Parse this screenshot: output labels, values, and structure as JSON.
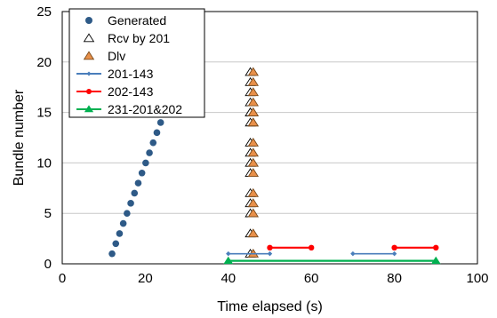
{
  "chart_data": {
    "type": "scatter",
    "title": "",
    "xlabel": "Time elapsed (s)",
    "ylabel": "Bundle number",
    "xlim": [
      0,
      100
    ],
    "ylim": [
      0,
      25
    ],
    "x_ticks": [
      0,
      20,
      40,
      60,
      80,
      100
    ],
    "y_ticks": [
      0,
      5,
      10,
      15,
      20,
      25
    ],
    "grid": "horizontal",
    "legend_position": "top-left",
    "series": [
      {
        "name": "Generated",
        "kind": "points",
        "marker": "circle",
        "color": "#2e5a87",
        "x": [
          12,
          12.9,
          13.8,
          14.7,
          15.6,
          16.5,
          17.4,
          18.3,
          19.2,
          20.1,
          21,
          21.9,
          22.8,
          23.7,
          24.6,
          25.5,
          26.4,
          27.3,
          28.2,
          29.1,
          30
        ],
        "y": [
          1,
          2,
          3,
          4,
          5,
          6,
          7,
          8,
          9,
          10,
          11,
          12,
          13,
          14,
          15,
          16,
          17,
          18,
          19,
          20,
          20
        ]
      },
      {
        "name": "Rcv by 201",
        "kind": "points",
        "marker": "triangle-open",
        "color": "#000000",
        "x": [
          45.3,
          45.3,
          45.3,
          45.3,
          45.3,
          45.3,
          45.3,
          45.3,
          45.3,
          45.3,
          45.3,
          45.3,
          45.3,
          45.3,
          45.3,
          45.3
        ],
        "y": [
          1,
          3,
          5,
          6,
          7,
          9,
          10,
          11,
          12,
          14,
          15,
          16,
          17,
          18,
          19,
          15
        ]
      },
      {
        "name": "Dlv",
        "kind": "points",
        "marker": "triangle-filled",
        "color": "#e8904a",
        "x": [
          46,
          46,
          46,
          46,
          46,
          46,
          46,
          46,
          46,
          46,
          46,
          46,
          46,
          46,
          46,
          46,
          46
        ],
        "y": [
          1,
          3,
          5,
          6,
          7,
          9,
          10,
          11,
          12,
          14,
          15,
          16,
          17,
          18,
          19,
          15,
          14
        ]
      },
      {
        "name": "201-143",
        "kind": "segments",
        "marker": "diamond",
        "color": "#4a7ebb",
        "segments": [
          {
            "x": [
              40,
              50
            ],
            "y": [
              1,
              1
            ]
          },
          {
            "x": [
              70,
              80
            ],
            "y": [
              1,
              1
            ]
          }
        ]
      },
      {
        "name": "202-143",
        "kind": "segments",
        "marker": "circle",
        "color": "#ff0000",
        "segments": [
          {
            "x": [
              50,
              60
            ],
            "y": [
              1.6,
              1.6
            ]
          },
          {
            "x": [
              80,
              90
            ],
            "y": [
              1.6,
              1.6
            ]
          }
        ]
      },
      {
        "name": "231-201&202",
        "kind": "segments",
        "marker": "triangle-filled",
        "color": "#00b050",
        "segments": [
          {
            "x": [
              40,
              90
            ],
            "y": [
              0.3,
              0.3
            ]
          }
        ]
      }
    ]
  }
}
